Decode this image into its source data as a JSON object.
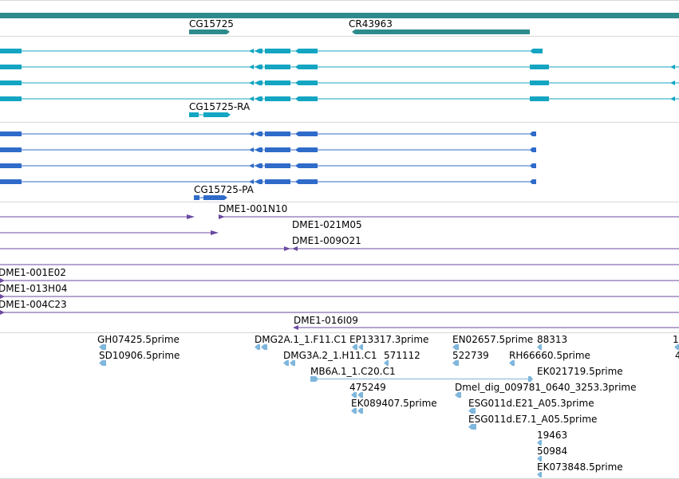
{
  "colors": {
    "gene": "#2e8b8b",
    "transcript": "#13a5c2",
    "protein": "#2f6bc9",
    "clone": "#6b4aa0",
    "est": "#7fb6dc",
    "separator": "#d8d8d8"
  },
  "genes": {
    "label_cg15725": "CG15725",
    "label_cr43963": "CR43963"
  },
  "transcripts": {
    "label": "CG15725-RA"
  },
  "proteins": {
    "label": "CG15725-PA"
  },
  "clones": {
    "labels": [
      "DME1-001N10",
      "DME1-021M05",
      "DME1-009O21",
      "DME1-001E02",
      "DME1-013H04",
      "DME1-004C23",
      "DME1-016I09"
    ]
  },
  "ests": {
    "labels": [
      "GH07425.5prime",
      "SD10906.5prime",
      "DMG2A.1_1.F11.C1",
      "EP13317.3prime",
      "EN02657.5prime",
      "88313",
      "1",
      "DMG3A.2_1.H11.C1",
      "571112",
      "522739",
      "RH66660.5prime",
      "4",
      "MB6A.1_1.C20.C1",
      "EK021719.5prime",
      "475249",
      "Dmel_dig_009781_0640_3253.3prime",
      "EK089407.5prime",
      "ESG011d.E21_A05.3prime",
      "ESG011d.E7.1_A05.5prime",
      "19463",
      "50984",
      "EK073848.5prime"
    ]
  }
}
